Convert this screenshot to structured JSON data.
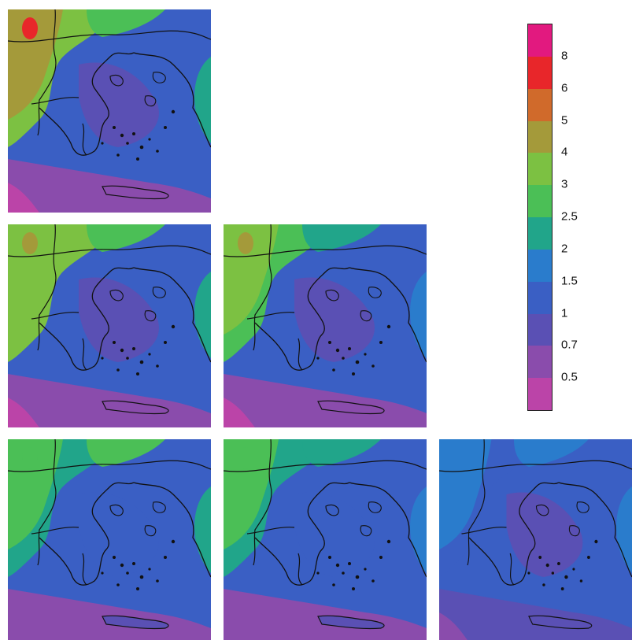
{
  "panels": [
    {
      "id": "panel-1",
      "row": 1,
      "col": 1,
      "variant": "high"
    },
    {
      "id": "panel-2",
      "row": 2,
      "col": 1,
      "variant": "high-mid"
    },
    {
      "id": "panel-3",
      "row": 2,
      "col": 2,
      "variant": "mid"
    },
    {
      "id": "panel-4",
      "row": 3,
      "col": 1,
      "variant": "mid-low"
    },
    {
      "id": "panel-5",
      "row": 3,
      "col": 2,
      "variant": "low"
    },
    {
      "id": "panel-6",
      "row": 3,
      "col": 3,
      "variant": "lowest"
    }
  ],
  "legend": {
    "labels": [
      "8",
      "6",
      "5",
      "4",
      "3",
      "2.5",
      "2",
      "1.5",
      "1",
      "0.7",
      "0.5"
    ],
    "colors": [
      "#e2197f",
      "#e8262a",
      "#d06a2b",
      "#a49a3a",
      "#7cc142",
      "#4bbf56",
      "#21a58a",
      "#2a7ccc",
      "#3a5fc4",
      "#5a50b4",
      "#8a4cac",
      "#bb44a8"
    ]
  }
}
